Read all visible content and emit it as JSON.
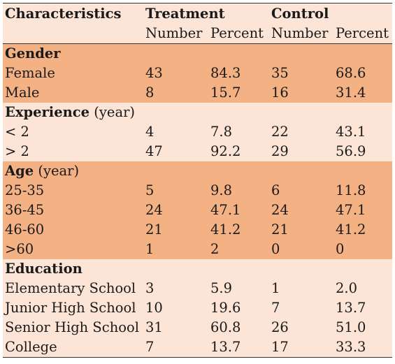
{
  "header": {
    "characteristics": "Characteristics",
    "treatment": "Treatment",
    "control": "Control",
    "number": "Number",
    "percent": "Percent"
  },
  "sections": [
    {
      "title": "Gender",
      "unit": "",
      "shade": "dark",
      "rows": [
        {
          "label": "Female",
          "t_num": "43",
          "t_pct": "84.3",
          "c_num": "35",
          "c_pct": "68.6"
        },
        {
          "label": "Male",
          "t_num": "8",
          "t_pct": "15.7",
          "c_num": "16",
          "c_pct": "31.4"
        }
      ]
    },
    {
      "title": "Experience",
      "unit": "(year)",
      "shade": "light",
      "rows": [
        {
          "label": "< 2",
          "t_num": "4",
          "t_pct": "7.8",
          "c_num": "22",
          "c_pct": "43.1"
        },
        {
          "label": "> 2",
          "t_num": "47",
          "t_pct": "92.2",
          "c_num": "29",
          "c_pct": "56.9"
        }
      ]
    },
    {
      "title": "Age",
      "unit": "(year)",
      "shade": "dark",
      "rows": [
        {
          "label": "25-35",
          "t_num": "5",
          "t_pct": "9.8",
          "c_num": "6",
          "c_pct": "11.8"
        },
        {
          "label": "36-45",
          "t_num": "24",
          "t_pct": "47.1",
          "c_num": "24",
          "c_pct": "47.1"
        },
        {
          "label": "46-60",
          "t_num": "21",
          "t_pct": "41.2",
          "c_num": "21",
          "c_pct": "41.2"
        },
        {
          "label": ">60",
          "t_num": "1",
          "t_pct": "2",
          "c_num": "0",
          "c_pct": "0"
        }
      ]
    },
    {
      "title": "Education",
      "unit": "",
      "shade": "light",
      "rows": [
        {
          "label": "Elementary School",
          "t_num": "3",
          "t_pct": "5.9",
          "c_num": "1",
          "c_pct": "2.0"
        },
        {
          "label": "Junior High School",
          "t_num": "10",
          "t_pct": "19.6",
          "c_num": "7",
          "c_pct": "13.7"
        },
        {
          "label": "Senior High School",
          "t_num": "31",
          "t_pct": "60.8",
          "c_num": "26",
          "c_pct": "51.0"
        },
        {
          "label": "College",
          "t_num": "7",
          "t_pct": "13.7",
          "c_num": "17",
          "c_pct": "33.3"
        }
      ]
    }
  ],
  "colors": {
    "light_band": "#fce4d6",
    "dark_band": "#f4b183",
    "rule": "#333333"
  }
}
